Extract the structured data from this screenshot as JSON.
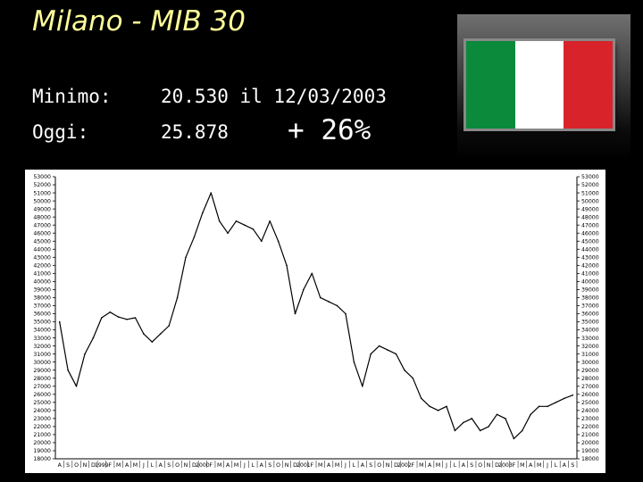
{
  "header": {
    "title": "Milano - MIB 30",
    "min_label": "Minimo:",
    "min_value": "20.530 il 12/03/2003",
    "today_label": "Oggi:",
    "today_value": "25.878",
    "change": "+ 26%"
  },
  "flag": {
    "icon": "italian-flag-icon",
    "colors": [
      "#0a8a3a",
      "#ffffff",
      "#d8232a"
    ]
  },
  "chart_data": {
    "type": "line",
    "title": "",
    "xlabel": "",
    "ylabel": "",
    "ylim": [
      18000,
      53000
    ],
    "line_color": "#000000",
    "grid": false,
    "y_ticks": [
      53000,
      52000,
      51000,
      50000,
      49000,
      48000,
      47000,
      46000,
      45000,
      44000,
      43000,
      42000,
      41000,
      40000,
      39000,
      38000,
      37000,
      36000,
      35000,
      34000,
      33000,
      32000,
      31000,
      30000,
      29000,
      28000,
      27000,
      26000,
      25000,
      24000,
      23000,
      22000,
      21000,
      20000,
      19000,
      18000
    ],
    "x_tick_labels": [
      "A",
      "S",
      "O",
      "N",
      "D",
      "1999",
      "F",
      "M",
      "A",
      "M",
      "J",
      "L",
      "A",
      "S",
      "O",
      "N",
      "D",
      "2000",
      "F",
      "M",
      "A",
      "M",
      "J",
      "L",
      "A",
      "S",
      "O",
      "N",
      "D",
      "2001",
      "F",
      "M",
      "A",
      "M",
      "J",
      "L",
      "A",
      "S",
      "O",
      "N",
      "D",
      "2002",
      "F",
      "M",
      "A",
      "M",
      "J",
      "L",
      "A",
      "S",
      "O",
      "N",
      "D",
      "2003",
      "F",
      "M",
      "A",
      "M",
      "J",
      "L",
      "A",
      "S"
    ],
    "x": [
      0,
      1,
      2,
      3,
      4,
      5,
      6,
      7,
      8,
      9,
      10,
      11,
      12,
      13,
      14,
      15,
      16,
      17,
      18,
      19,
      20,
      21,
      22,
      23,
      24,
      25,
      26,
      27,
      28,
      29,
      30,
      31,
      32,
      33,
      34,
      35,
      36,
      37,
      38,
      39,
      40,
      41,
      42,
      43,
      44,
      45,
      46,
      47,
      48,
      49,
      50,
      51,
      52,
      53,
      54,
      55,
      56,
      57,
      58,
      59,
      60,
      61
    ],
    "values": [
      35000,
      29000,
      27000,
      31000,
      33000,
      35500,
      36200,
      35600,
      35300,
      35500,
      33500,
      32500,
      33500,
      34500,
      38000,
      43000,
      45500,
      48500,
      51000,
      47500,
      46000,
      47500,
      47000,
      46500,
      45000,
      47500,
      45000,
      42000,
      36000,
      39000,
      41000,
      38000,
      37500,
      37000,
      36000,
      30000,
      27000,
      31000,
      32000,
      31500,
      31000,
      29000,
      28000,
      25500,
      24500,
      24000,
      24500,
      21500,
      22500,
      23000,
      21500,
      22000,
      23500,
      23000,
      20500,
      21500,
      23500,
      24500,
      24500,
      25000,
      25500,
      25900
    ]
  }
}
